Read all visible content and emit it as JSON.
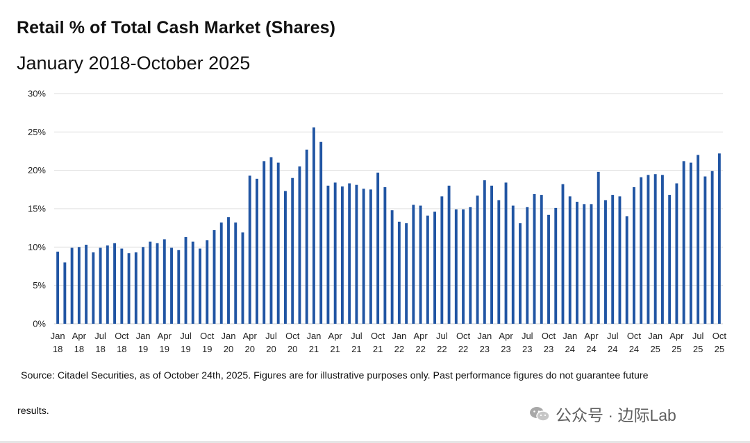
{
  "header": {
    "title": "Retail % of Total Cash Market (Shares)",
    "subtitle": "January 2018-October 2025"
  },
  "footer": {
    "source_line1": "Source: Citadel Securities, as of October 24th, 2025. Figures are for illustrative purposes only. Past performance figures do not guarantee future",
    "source_line2": "results.",
    "watermark": "公众号 · 边际Lab"
  },
  "colors": {
    "bar": "#2155a3",
    "grid": "#dcdcdc",
    "text": "#222222"
  },
  "chart_data": {
    "type": "bar",
    "title": "Retail % of Total Cash Market (Shares)",
    "subtitle": "January 2018-October 2025",
    "xlabel": "",
    "ylabel": "",
    "ylim": [
      0,
      30
    ],
    "yticks": [
      "0%",
      "5%",
      "10%",
      "15%",
      "20%",
      "25%",
      "30%"
    ],
    "grid": true,
    "legend": "none",
    "x_tick_labels": [
      [
        "Jan",
        "18"
      ],
      [
        "Apr",
        "18"
      ],
      [
        "Jul",
        "18"
      ],
      [
        "Oct",
        "18"
      ],
      [
        "Jan",
        "19"
      ],
      [
        "Apr",
        "19"
      ],
      [
        "Jul",
        "19"
      ],
      [
        "Oct",
        "19"
      ],
      [
        "Jan",
        "20"
      ],
      [
        "Apr",
        "20"
      ],
      [
        "Jul",
        "20"
      ],
      [
        "Oct",
        "20"
      ],
      [
        "Jan",
        "21"
      ],
      [
        "Apr",
        "21"
      ],
      [
        "Jul",
        "21"
      ],
      [
        "Oct",
        "21"
      ],
      [
        "Jan",
        "22"
      ],
      [
        "Apr",
        "22"
      ],
      [
        "Jul",
        "22"
      ],
      [
        "Oct",
        "22"
      ],
      [
        "Jan",
        "23"
      ],
      [
        "Apr",
        "23"
      ],
      [
        "Jul",
        "23"
      ],
      [
        "Oct",
        "23"
      ],
      [
        "Jan",
        "24"
      ],
      [
        "Apr",
        "24"
      ],
      [
        "Jul",
        "24"
      ],
      [
        "Oct",
        "24"
      ],
      [
        "Jan",
        "25"
      ],
      [
        "Apr",
        "25"
      ],
      [
        "Jul",
        "25"
      ],
      [
        "Oct",
        "25"
      ]
    ],
    "series": [
      {
        "name": "Retail % of Total Cash Market (Shares)",
        "start": "Jan 2018",
        "values": [
          9.4,
          8.0,
          9.9,
          10.0,
          10.3,
          9.3,
          9.9,
          10.2,
          10.5,
          9.8,
          9.2,
          9.3,
          10.0,
          10.7,
          10.5,
          11.0,
          9.9,
          9.6,
          11.3,
          10.7,
          9.8,
          10.9,
          12.2,
          13.2,
          13.9,
          13.2,
          11.9,
          19.3,
          18.9,
          21.2,
          21.7,
          21.0,
          17.3,
          19.0,
          20.5,
          22.7,
          25.6,
          23.7,
          18.0,
          18.4,
          17.9,
          18.3,
          18.1,
          17.6,
          17.5,
          19.7,
          17.8,
          14.8,
          13.3,
          13.1,
          15.5,
          15.4,
          14.1,
          14.6,
          16.6,
          18.0,
          14.9,
          14.9,
          15.2,
          16.7,
          18.7,
          18.0,
          16.1,
          18.4,
          15.4,
          13.1,
          15.2,
          16.9,
          16.8,
          14.2,
          15.1,
          18.2,
          16.6,
          15.9,
          15.6,
          15.6,
          19.8,
          16.1,
          16.8,
          16.6,
          14.0,
          17.8,
          19.1,
          19.4,
          19.5,
          19.4,
          16.8,
          18.3,
          21.2,
          21.0,
          22.0,
          19.2,
          19.9,
          22.2
        ]
      }
    ]
  }
}
